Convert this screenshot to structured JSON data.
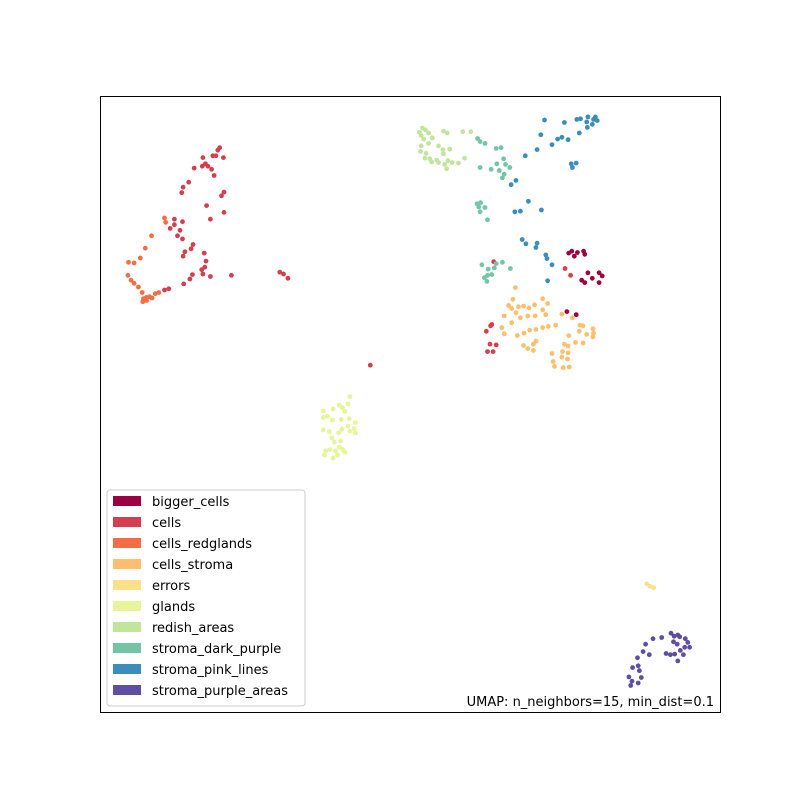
{
  "chart_data": {
    "type": "scatter",
    "title": "",
    "xlabel": "",
    "ylabel": "",
    "annotation": "UMAP: n_neighbors=15, min_dist=0.1",
    "xlim": [
      0,
      100
    ],
    "ylim": [
      0,
      100
    ],
    "grid": false,
    "ticks": false,
    "legend_position": "lower-left",
    "series": [
      {
        "name": "bigger_cells",
        "color": "#9e0142",
        "points": [
          [
            75.6,
            74.5
          ],
          [
            76.1,
            74.8
          ],
          [
            77.0,
            74.6
          ],
          [
            78.0,
            74.8
          ],
          [
            78.2,
            74.3
          ],
          [
            76.5,
            74.0
          ],
          [
            78.7,
            71.3
          ],
          [
            79.4,
            70.4
          ],
          [
            81.0,
            70.8
          ],
          [
            80.5,
            71.3
          ],
          [
            80.5,
            69.7
          ],
          [
            78.2,
            69.7
          ],
          [
            77.7,
            70.1
          ],
          [
            75.3,
            65.0
          ],
          [
            76.8,
            64.5
          ]
        ]
      },
      {
        "name": "cells",
        "color": "#d53e4f",
        "points": [
          [
            19.0,
            91.2
          ],
          [
            19.3,
            91.6
          ],
          [
            18.7,
            90.3
          ],
          [
            18.2,
            90.3
          ],
          [
            19.9,
            90.0
          ],
          [
            16.6,
            90.0
          ],
          [
            17.0,
            89.0
          ],
          [
            17.4,
            88.6
          ],
          [
            18.0,
            88.1
          ],
          [
            16.5,
            88.6
          ],
          [
            15.2,
            88.3
          ],
          [
            18.4,
            87.1
          ],
          [
            14.3,
            86.0
          ],
          [
            13.4,
            85.2
          ],
          [
            13.2,
            84.3
          ],
          [
            20.0,
            84.4
          ],
          [
            19.6,
            83.8
          ],
          [
            17.2,
            82.2
          ],
          [
            20.0,
            81.1
          ],
          [
            17.8,
            80.0
          ],
          [
            12.0,
            80.0
          ],
          [
            13.3,
            79.6
          ],
          [
            12.0,
            79.1
          ],
          [
            11.3,
            78.5
          ],
          [
            12.9,
            78.2
          ],
          [
            12.5,
            77.3
          ],
          [
            13.3,
            76.8
          ],
          [
            15.0,
            75.9
          ],
          [
            14.7,
            75.2
          ],
          [
            13.7,
            74.7
          ],
          [
            16.8,
            74.5
          ],
          [
            13.4,
            74.0
          ],
          [
            17.1,
            73.2
          ],
          [
            16.9,
            72.2
          ],
          [
            16.4,
            71.8
          ],
          [
            14.9,
            71.0
          ],
          [
            16.6,
            71.1
          ],
          [
            17.8,
            70.7
          ],
          [
            21.2,
            70.9
          ],
          [
            14.5,
            70.3
          ],
          [
            13.5,
            69.5
          ],
          [
            11.1,
            68.7
          ],
          [
            10.4,
            68.5
          ],
          [
            29.0,
            71.4
          ],
          [
            29.6,
            71.1
          ],
          [
            30.3,
            70.4
          ],
          [
            63.5,
            73.1
          ],
          [
            75.0,
            72.0
          ],
          [
            75.9,
            70.9
          ],
          [
            63.2,
            62.9
          ],
          [
            63.0,
            62.7
          ],
          [
            62.3,
            61.8
          ],
          [
            62.9,
            59.7
          ],
          [
            63.9,
            59.6
          ],
          [
            62.5,
            58.5
          ],
          [
            63.4,
            58.5
          ],
          [
            43.6,
            56.3
          ]
        ]
      },
      {
        "name": "cells_redglands",
        "color": "#f46d43",
        "points": [
          [
            10.4,
            80.2
          ],
          [
            10.6,
            79.5
          ],
          [
            8.3,
            77.3
          ],
          [
            7.3,
            75.3
          ],
          [
            6.5,
            73.7
          ],
          [
            5.5,
            72.9
          ],
          [
            4.6,
            73.0
          ],
          [
            4.5,
            70.9
          ],
          [
            5.0,
            70.1
          ],
          [
            5.5,
            69.6
          ],
          [
            6.2,
            69.0
          ],
          [
            6.8,
            68.1
          ],
          [
            7.0,
            67.1
          ],
          [
            7.5,
            67.3
          ],
          [
            8.0,
            67.4
          ],
          [
            8.4,
            67.2
          ],
          [
            8.9,
            67.9
          ],
          [
            9.5,
            68.1
          ],
          [
            7.5,
            66.8
          ],
          [
            6.9,
            66.6
          ]
        ]
      },
      {
        "name": "cells_stroma",
        "color": "#fdbe6e",
        "points": [
          [
            67.0,
            68.9
          ],
          [
            66.6,
            67.0
          ],
          [
            65.9,
            66.0
          ],
          [
            66.4,
            65.5
          ],
          [
            67.1,
            64.8
          ],
          [
            67.5,
            65.8
          ],
          [
            68.3,
            65.9
          ],
          [
            69.2,
            65.6
          ],
          [
            70.1,
            66.1
          ],
          [
            71.4,
            67.1
          ],
          [
            72.2,
            66.3
          ],
          [
            71.4,
            65.3
          ],
          [
            71.9,
            64.5
          ],
          [
            70.2,
            64.3
          ],
          [
            69.0,
            64.3
          ],
          [
            67.8,
            64.0
          ],
          [
            66.4,
            63.2
          ],
          [
            65.2,
            64.3
          ],
          [
            64.8,
            62.4
          ],
          [
            65.2,
            61.4
          ],
          [
            67.3,
            61.1
          ],
          [
            68.4,
            61.5
          ],
          [
            69.3,
            62.0
          ],
          [
            70.3,
            62.1
          ],
          [
            71.4,
            62.4
          ],
          [
            72.3,
            62.6
          ],
          [
            73.5,
            62.8
          ],
          [
            74.5,
            64.6
          ],
          [
            76.2,
            64.0
          ],
          [
            77.4,
            62.8
          ],
          [
            77.9,
            62.7
          ],
          [
            79.5,
            62.2
          ],
          [
            79.6,
            61.5
          ],
          [
            79.5,
            60.9
          ],
          [
            78.5,
            61.3
          ],
          [
            77.3,
            61.8
          ],
          [
            75.6,
            61.1
          ],
          [
            75.5,
            59.4
          ],
          [
            74.6,
            58.5
          ],
          [
            72.9,
            58.2
          ],
          [
            70.3,
            60.2
          ],
          [
            69.9,
            59.7
          ],
          [
            69.0,
            59.0
          ],
          [
            74.9,
            59.7
          ],
          [
            76.7,
            60.0
          ],
          [
            77.9,
            59.9
          ],
          [
            75.5,
            58.3
          ],
          [
            73.1,
            56.9
          ],
          [
            73.3,
            56.1
          ],
          [
            74.7,
            55.9
          ],
          [
            75.7,
            56.0
          ],
          [
            74.5,
            57.6
          ],
          [
            75.4,
            57.3
          ],
          [
            68.3,
            59.5
          ],
          [
            69.9,
            58.7
          ]
        ]
      },
      {
        "name": "errors",
        "color": "#fee08b",
        "points": [
          [
            88.2,
            20.8
          ],
          [
            88.7,
            20.4
          ],
          [
            89.3,
            20.2
          ]
        ]
      },
      {
        "name": "glands",
        "color": "#e6f598",
        "points": [
          [
            40.3,
            51.2
          ],
          [
            40.0,
            50.0
          ],
          [
            39.1,
            49.4
          ],
          [
            38.6,
            49.8
          ],
          [
            39.5,
            48.8
          ],
          [
            37.6,
            49.2
          ],
          [
            36.7,
            48.0
          ],
          [
            36.0,
            48.9
          ],
          [
            36.0,
            47.8
          ],
          [
            37.5,
            47.4
          ],
          [
            38.9,
            47.5
          ],
          [
            40.2,
            47.6
          ],
          [
            41.2,
            47.0
          ],
          [
            40.0,
            46.4
          ],
          [
            39.0,
            45.9
          ],
          [
            38.5,
            45.3
          ],
          [
            37.0,
            45.5
          ],
          [
            36.0,
            45.8
          ],
          [
            41.0,
            46.0
          ],
          [
            40.3,
            45.6
          ],
          [
            41.2,
            45.3
          ],
          [
            37.4,
            44.5
          ],
          [
            38.8,
            44.0
          ],
          [
            37.8,
            43.8
          ],
          [
            38.6,
            43.0
          ],
          [
            38.0,
            42.4
          ],
          [
            37.1,
            42.6
          ],
          [
            36.4,
            42.4
          ],
          [
            36.2,
            41.7
          ],
          [
            38.3,
            41.7
          ],
          [
            37.6,
            41.2
          ],
          [
            39.2,
            42.6
          ],
          [
            39.5,
            42.2
          ]
        ]
      },
      {
        "name": "redish_areas",
        "color": "#c2e59e",
        "points": [
          [
            52.0,
            94.8
          ],
          [
            52.5,
            94.5
          ],
          [
            53.0,
            94.0
          ],
          [
            51.5,
            94.1
          ],
          [
            51.8,
            93.6
          ],
          [
            52.2,
            93.0
          ],
          [
            53.6,
            93.2
          ],
          [
            55.4,
            94.3
          ],
          [
            56.0,
            94.0
          ],
          [
            58.5,
            94.2
          ],
          [
            59.8,
            94.2
          ],
          [
            53.0,
            92.3
          ],
          [
            51.8,
            91.9
          ],
          [
            51.7,
            91.0
          ],
          [
            52.6,
            90.7
          ],
          [
            54.6,
            91.9
          ],
          [
            55.3,
            91.3
          ],
          [
            56.4,
            91.4
          ],
          [
            55.4,
            90.6
          ],
          [
            53.2,
            89.8
          ],
          [
            52.4,
            89.9
          ],
          [
            54.3,
            89.6
          ],
          [
            53.5,
            89.3
          ],
          [
            54.6,
            89.2
          ],
          [
            56.1,
            89.5
          ],
          [
            56.8,
            89.2
          ],
          [
            55.6,
            88.9
          ],
          [
            57.8,
            89.1
          ],
          [
            58.8,
            89.9
          ],
          [
            55.9,
            88.2
          ]
        ]
      },
      {
        "name": "stroma_dark_purple",
        "color": "#74c5a4",
        "points": [
          [
            60.9,
            93.1
          ],
          [
            61.3,
            92.6
          ],
          [
            62.1,
            92.3
          ],
          [
            63.9,
            91.5
          ],
          [
            64.7,
            91.6
          ],
          [
            65.1,
            89.8
          ],
          [
            64.0,
            89.0
          ],
          [
            65.4,
            88.9
          ],
          [
            66.1,
            88.4
          ],
          [
            64.4,
            87.9
          ],
          [
            63.1,
            88.1
          ],
          [
            61.3,
            88.4
          ],
          [
            65.2,
            87.3
          ],
          [
            64.9,
            86.7
          ],
          [
            60.8,
            82.5
          ],
          [
            61.4,
            82.7
          ],
          [
            61.1,
            82.0
          ],
          [
            61.3,
            81.2
          ],
          [
            62.1,
            81.9
          ],
          [
            62.5,
            79.9
          ],
          [
            61.6,
            72.6
          ],
          [
            62.6,
            71.9
          ],
          [
            63.6,
            72.1
          ],
          [
            63.9,
            72.8
          ],
          [
            64.9,
            73.0
          ],
          [
            62.5,
            70.9
          ],
          [
            63.2,
            71.0
          ],
          [
            62.0,
            70.5
          ],
          [
            62.4,
            69.9
          ],
          [
            66.2,
            72.0
          ]
        ]
      },
      {
        "name": "stroma_pink_lines",
        "color": "#3a8ebd",
        "points": [
          [
            71.7,
            96.1
          ],
          [
            74.9,
            95.7
          ],
          [
            76.9,
            96.2
          ],
          [
            77.5,
            96.3
          ],
          [
            78.5,
            95.8
          ],
          [
            78.7,
            96.6
          ],
          [
            79.9,
            96.6
          ],
          [
            79.6,
            96.2
          ],
          [
            80.2,
            96.0
          ],
          [
            79.4,
            95.4
          ],
          [
            78.6,
            94.9
          ],
          [
            77.3,
            94.0
          ],
          [
            74.5,
            93.3
          ],
          [
            73.8,
            93.0
          ],
          [
            75.5,
            92.9
          ],
          [
            71.1,
            93.7
          ],
          [
            72.9,
            92.1
          ],
          [
            70.5,
            91.3
          ],
          [
            68.6,
            90.3
          ],
          [
            76.0,
            89.0
          ],
          [
            76.2,
            88.4
          ],
          [
            76.8,
            89.1
          ],
          [
            66.3,
            85.6
          ],
          [
            67.1,
            86.3
          ],
          [
            69.1,
            82.9
          ],
          [
            71.2,
            81.5
          ],
          [
            66.9,
            81.2
          ],
          [
            67.8,
            81.3
          ],
          [
            68.1,
            76.7
          ],
          [
            68.7,
            76.0
          ],
          [
            70.5,
            76.1
          ],
          [
            70.3,
            75.4
          ],
          [
            71.9,
            74.2
          ],
          [
            72.1,
            73.6
          ],
          [
            72.9,
            72.6
          ],
          [
            72.2,
            70.0
          ]
        ]
      },
      {
        "name": "stroma_purple_areas",
        "color": "#5e4fa2",
        "points": [
          [
            92.1,
            12.8
          ],
          [
            92.6,
            12.3
          ],
          [
            93.2,
            12.5
          ],
          [
            93.5,
            12.2
          ],
          [
            92.5,
            11.4
          ],
          [
            93.1,
            11.0
          ],
          [
            94.4,
            11.9
          ],
          [
            94.8,
            11.3
          ],
          [
            95.1,
            10.5
          ],
          [
            94.3,
            10.5
          ],
          [
            94.1,
            9.3
          ],
          [
            93.6,
            10.0
          ],
          [
            92.7,
            9.4
          ],
          [
            92.0,
            9.3
          ],
          [
            91.3,
            9.5
          ],
          [
            93.2,
            8.3
          ],
          [
            89.2,
            11.9
          ],
          [
            90.6,
            12.1
          ],
          [
            88.0,
            11.0
          ],
          [
            87.6,
            9.8
          ],
          [
            88.6,
            9.3
          ],
          [
            86.7,
            8.8
          ],
          [
            86.8,
            7.5
          ],
          [
            87.0,
            6.7
          ],
          [
            85.9,
            7.2
          ],
          [
            85.3,
            5.7
          ],
          [
            85.8,
            5.0
          ],
          [
            85.6,
            4.3
          ],
          [
            87.3,
            5.6
          ],
          [
            86.8,
            4.7
          ]
        ]
      }
    ]
  }
}
